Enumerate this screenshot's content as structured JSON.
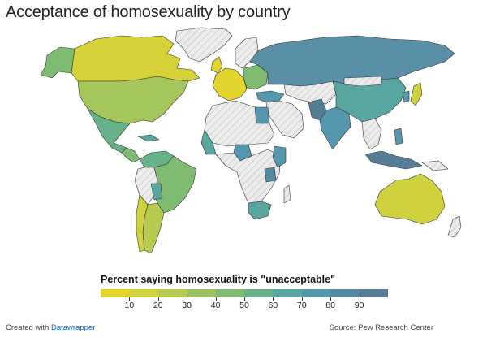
{
  "title": "Acceptance of homosexuality by country",
  "legend": {
    "title": "Percent saying homosexuality is \"unacceptable\"",
    "scale_min": 0,
    "scale_max": 100,
    "ticks": [
      "10",
      "20",
      "30",
      "40",
      "50",
      "60",
      "70",
      "80",
      "90"
    ],
    "colors": [
      "#e3d42e",
      "#cfd23e",
      "#b7cb4f",
      "#9cc25f",
      "#80bb72",
      "#67b288",
      "#58a6a0",
      "#5598ad",
      "#5489a5",
      "#567d96"
    ]
  },
  "colors": {
    "no_data_fill": "#e9e9e9",
    "no_data_hatch": "#d0d0d0",
    "border": "#333333"
  },
  "footer": {
    "created_prefix": "Created with ",
    "created_link": "Datawrapper",
    "source": "Source: Pew Research Center"
  }
}
